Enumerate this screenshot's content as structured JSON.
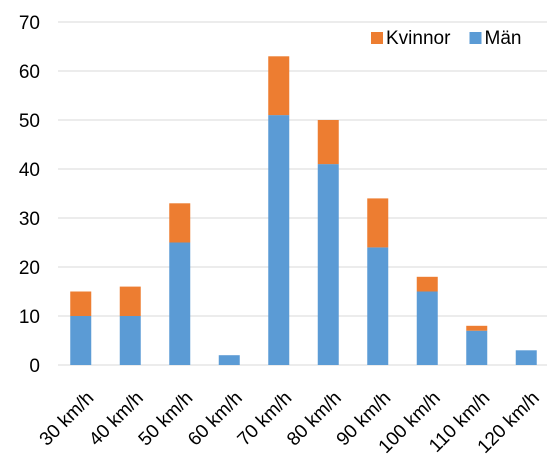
{
  "chart_data": {
    "type": "bar",
    "stacked": true,
    "categories": [
      "30 km/h",
      "40 km/h",
      "50 km/h",
      "60 km/h",
      "70 km/h",
      "80 km/h",
      "90 km/h",
      "100 km/h",
      "110 km/h",
      "120 km/h"
    ],
    "series": [
      {
        "name": "Män",
        "color": "#5B9BD5",
        "values": [
          10,
          10,
          25,
          2,
          51,
          41,
          24,
          15,
          7,
          3
        ]
      },
      {
        "name": "Kvinnor",
        "color": "#ED7D31",
        "values": [
          5,
          6,
          8,
          0,
          12,
          9,
          10,
          3,
          1,
          0
        ]
      }
    ],
    "ylim": [
      0,
      70
    ],
    "yticks": [
      0,
      10,
      20,
      30,
      40,
      50,
      60,
      70
    ],
    "grid": true,
    "gridColor": "#d9d9d9",
    "legend": {
      "placement": "top-right",
      "order": [
        "Kvinnor",
        "Män"
      ]
    }
  }
}
